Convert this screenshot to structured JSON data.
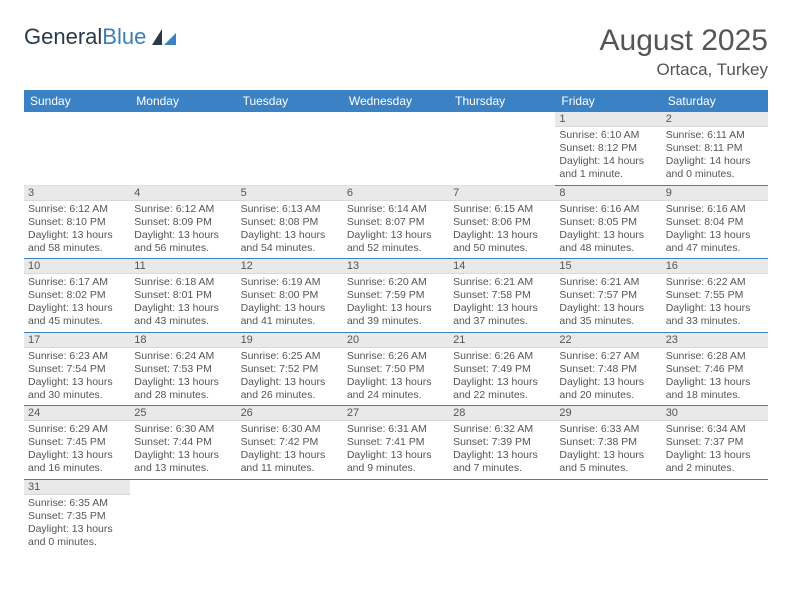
{
  "logo": {
    "text1": "General",
    "text2": "Blue"
  },
  "title": "August 2025",
  "location": "Ortaca, Turkey",
  "colors": {
    "header_bg": "#3b82c4",
    "header_text": "#ffffff",
    "daynum_bg": "#e9e9e9",
    "text": "#555555",
    "row_border": "#3b82c4"
  },
  "weekdays": [
    "Sunday",
    "Monday",
    "Tuesday",
    "Wednesday",
    "Thursday",
    "Friday",
    "Saturday"
  ],
  "weeks": [
    [
      null,
      null,
      null,
      null,
      null,
      {
        "n": "1",
        "sr": "6:10 AM",
        "ss": "8:12 PM",
        "dl": "14 hours and 1 minute."
      },
      {
        "n": "2",
        "sr": "6:11 AM",
        "ss": "8:11 PM",
        "dl": "14 hours and 0 minutes."
      }
    ],
    [
      {
        "n": "3",
        "sr": "6:12 AM",
        "ss": "8:10 PM",
        "dl": "13 hours and 58 minutes."
      },
      {
        "n": "4",
        "sr": "6:12 AM",
        "ss": "8:09 PM",
        "dl": "13 hours and 56 minutes."
      },
      {
        "n": "5",
        "sr": "6:13 AM",
        "ss": "8:08 PM",
        "dl": "13 hours and 54 minutes."
      },
      {
        "n": "6",
        "sr": "6:14 AM",
        "ss": "8:07 PM",
        "dl": "13 hours and 52 minutes."
      },
      {
        "n": "7",
        "sr": "6:15 AM",
        "ss": "8:06 PM",
        "dl": "13 hours and 50 minutes."
      },
      {
        "n": "8",
        "sr": "6:16 AM",
        "ss": "8:05 PM",
        "dl": "13 hours and 48 minutes."
      },
      {
        "n": "9",
        "sr": "6:16 AM",
        "ss": "8:04 PM",
        "dl": "13 hours and 47 minutes."
      }
    ],
    [
      {
        "n": "10",
        "sr": "6:17 AM",
        "ss": "8:02 PM",
        "dl": "13 hours and 45 minutes."
      },
      {
        "n": "11",
        "sr": "6:18 AM",
        "ss": "8:01 PM",
        "dl": "13 hours and 43 minutes."
      },
      {
        "n": "12",
        "sr": "6:19 AM",
        "ss": "8:00 PM",
        "dl": "13 hours and 41 minutes."
      },
      {
        "n": "13",
        "sr": "6:20 AM",
        "ss": "7:59 PM",
        "dl": "13 hours and 39 minutes."
      },
      {
        "n": "14",
        "sr": "6:21 AM",
        "ss": "7:58 PM",
        "dl": "13 hours and 37 minutes."
      },
      {
        "n": "15",
        "sr": "6:21 AM",
        "ss": "7:57 PM",
        "dl": "13 hours and 35 minutes."
      },
      {
        "n": "16",
        "sr": "6:22 AM",
        "ss": "7:55 PM",
        "dl": "13 hours and 33 minutes."
      }
    ],
    [
      {
        "n": "17",
        "sr": "6:23 AM",
        "ss": "7:54 PM",
        "dl": "13 hours and 30 minutes."
      },
      {
        "n": "18",
        "sr": "6:24 AM",
        "ss": "7:53 PM",
        "dl": "13 hours and 28 minutes."
      },
      {
        "n": "19",
        "sr": "6:25 AM",
        "ss": "7:52 PM",
        "dl": "13 hours and 26 minutes."
      },
      {
        "n": "20",
        "sr": "6:26 AM",
        "ss": "7:50 PM",
        "dl": "13 hours and 24 minutes."
      },
      {
        "n": "21",
        "sr": "6:26 AM",
        "ss": "7:49 PM",
        "dl": "13 hours and 22 minutes."
      },
      {
        "n": "22",
        "sr": "6:27 AM",
        "ss": "7:48 PM",
        "dl": "13 hours and 20 minutes."
      },
      {
        "n": "23",
        "sr": "6:28 AM",
        "ss": "7:46 PM",
        "dl": "13 hours and 18 minutes."
      }
    ],
    [
      {
        "n": "24",
        "sr": "6:29 AM",
        "ss": "7:45 PM",
        "dl": "13 hours and 16 minutes."
      },
      {
        "n": "25",
        "sr": "6:30 AM",
        "ss": "7:44 PM",
        "dl": "13 hours and 13 minutes."
      },
      {
        "n": "26",
        "sr": "6:30 AM",
        "ss": "7:42 PM",
        "dl": "13 hours and 11 minutes."
      },
      {
        "n": "27",
        "sr": "6:31 AM",
        "ss": "7:41 PM",
        "dl": "13 hours and 9 minutes."
      },
      {
        "n": "28",
        "sr": "6:32 AM",
        "ss": "7:39 PM",
        "dl": "13 hours and 7 minutes."
      },
      {
        "n": "29",
        "sr": "6:33 AM",
        "ss": "7:38 PM",
        "dl": "13 hours and 5 minutes."
      },
      {
        "n": "30",
        "sr": "6:34 AM",
        "ss": "7:37 PM",
        "dl": "13 hours and 2 minutes."
      }
    ],
    [
      {
        "n": "31",
        "sr": "6:35 AM",
        "ss": "7:35 PM",
        "dl": "13 hours and 0 minutes."
      },
      null,
      null,
      null,
      null,
      null,
      null
    ]
  ],
  "labels": {
    "sunrise": "Sunrise: ",
    "sunset": "Sunset: ",
    "daylight": "Daylight: "
  }
}
